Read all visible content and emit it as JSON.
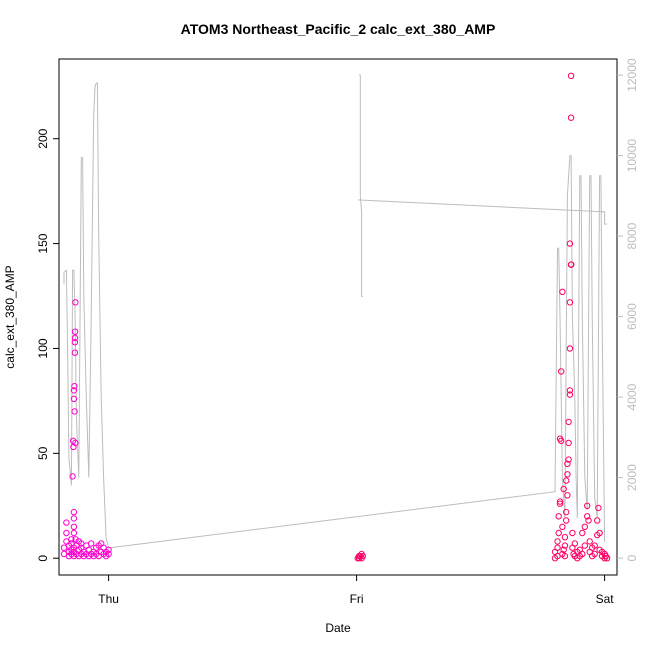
{
  "chart_data": {
    "type": "scatter",
    "title": "ATOM3 Northeast_Pacific_2 calc_ext_380_AMP",
    "xlabel": "Date",
    "ylabel": "calc_ext_380_AMP",
    "x_ticks": [
      "Thu",
      "Fri",
      "Sat"
    ],
    "xlim_days": [
      -0.2,
      2.05
    ],
    "ylim": [
      -8,
      238
    ],
    "y_ticks": [
      0,
      50,
      100,
      150,
      200
    ],
    "y2lim": [
      -420,
      12400
    ],
    "y2_ticks": [
      0,
      2000,
      4000,
      6000,
      8000,
      10000,
      12000
    ],
    "grid": false,
    "series": [
      {
        "color": "#ff00cc",
        "marker": "open-circle",
        "points": [
          [
            -0.18,
            2
          ],
          [
            -0.18,
            5
          ],
          [
            -0.17,
            8
          ],
          [
            -0.17,
            12
          ],
          [
            -0.17,
            17
          ],
          [
            -0.16,
            3
          ],
          [
            -0.16,
            6
          ],
          [
            -0.16,
            1
          ],
          [
            -0.15,
            4
          ],
          [
            -0.15,
            9
          ],
          [
            -0.15,
            2
          ],
          [
            -0.15,
            7
          ],
          [
            -0.14,
            1
          ],
          [
            -0.14,
            3
          ],
          [
            -0.14,
            5
          ],
          [
            -0.14,
            22
          ],
          [
            -0.14,
            19
          ],
          [
            -0.14,
            15
          ],
          [
            -0.14,
            12
          ],
          [
            -0.145,
            39
          ],
          [
            -0.143,
            56
          ],
          [
            -0.142,
            53
          ],
          [
            -0.14,
            76
          ],
          [
            -0.14,
            80
          ],
          [
            -0.138,
            82
          ],
          [
            -0.137,
            70
          ],
          [
            -0.136,
            98
          ],
          [
            -0.136,
            103
          ],
          [
            -0.135,
            105
          ],
          [
            -0.135,
            108
          ],
          [
            -0.134,
            122
          ],
          [
            -0.134,
            55
          ],
          [
            -0.133,
            9
          ],
          [
            -0.13,
            2
          ],
          [
            -0.13,
            6
          ],
          [
            -0.12,
            1
          ],
          [
            -0.12,
            4
          ],
          [
            -0.12,
            8
          ],
          [
            -0.11,
            2
          ],
          [
            -0.11,
            5
          ],
          [
            -0.11,
            7
          ],
          [
            -0.1,
            1
          ],
          [
            -0.1,
            3
          ],
          [
            -0.09,
            2
          ],
          [
            -0.09,
            6
          ],
          [
            -0.08,
            1
          ],
          [
            -0.08,
            4
          ],
          [
            -0.07,
            2
          ],
          [
            -0.07,
            7
          ],
          [
            -0.06,
            1
          ],
          [
            -0.06,
            3
          ],
          [
            -0.05,
            5
          ],
          [
            -0.05,
            2
          ],
          [
            -0.04,
            1
          ],
          [
            -0.04,
            6
          ],
          [
            -0.03,
            3
          ],
          [
            -0.03,
            7
          ],
          [
            -0.02,
            2
          ],
          [
            -0.02,
            5
          ],
          [
            -0.01,
            1
          ],
          [
            -0.01,
            3
          ],
          [
            0.0,
            2
          ],
          [
            0.0,
            4
          ]
        ]
      },
      {
        "color": "#ff0066",
        "marker": "open-circle",
        "points": [
          [
            1.01,
            0
          ],
          [
            1.01,
            1
          ],
          [
            1.02,
            0
          ],
          [
            1.02,
            2
          ],
          [
            1.015,
            1
          ],
          [
            1.005,
            0
          ],
          [
            1.025,
            1
          ],
          [
            1.8,
            0
          ],
          [
            1.8,
            3
          ],
          [
            1.81,
            1
          ],
          [
            1.81,
            5
          ],
          [
            1.81,
            8
          ],
          [
            1.815,
            12
          ],
          [
            1.815,
            20
          ],
          [
            1.82,
            26
          ],
          [
            1.82,
            27
          ],
          [
            1.82,
            57
          ],
          [
            1.825,
            56
          ],
          [
            1.825,
            89
          ],
          [
            1.83,
            127
          ],
          [
            1.83,
            2
          ],
          [
            1.83,
            15
          ],
          [
            1.835,
            4
          ],
          [
            1.84,
            1
          ],
          [
            1.84,
            6
          ],
          [
            1.84,
            10
          ],
          [
            1.845,
            18
          ],
          [
            1.845,
            22
          ],
          [
            1.85,
            30
          ],
          [
            1.85,
            40
          ],
          [
            1.85,
            45
          ],
          [
            1.855,
            55
          ],
          [
            1.855,
            65
          ],
          [
            1.86,
            80
          ],
          [
            1.86,
            78
          ],
          [
            1.86,
            100
          ],
          [
            1.86,
            122
          ],
          [
            1.865,
            140
          ],
          [
            1.865,
            140
          ],
          [
            1.865,
            140
          ],
          [
            1.86,
            150
          ],
          [
            1.865,
            210
          ],
          [
            1.865,
            230
          ],
          [
            1.87,
            12
          ],
          [
            1.87,
            5
          ],
          [
            1.875,
            2
          ],
          [
            1.88,
            1
          ],
          [
            1.88,
            7
          ],
          [
            1.89,
            0
          ],
          [
            1.89,
            3
          ],
          [
            1.9,
            1
          ],
          [
            1.9,
            4
          ],
          [
            1.91,
            2
          ],
          [
            1.91,
            12
          ],
          [
            1.92,
            6
          ],
          [
            1.92,
            15
          ],
          [
            1.93,
            20
          ],
          [
            1.93,
            25
          ],
          [
            1.935,
            18
          ],
          [
            1.94,
            8
          ],
          [
            1.94,
            3
          ],
          [
            1.95,
            1
          ],
          [
            1.95,
            5
          ],
          [
            1.96,
            2
          ],
          [
            1.96,
            6
          ],
          [
            1.97,
            11
          ],
          [
            1.97,
            18
          ],
          [
            1.975,
            24
          ],
          [
            1.98,
            12
          ],
          [
            1.98,
            4
          ],
          [
            1.99,
            1
          ],
          [
            1.99,
            3
          ],
          [
            2.0,
            0
          ],
          [
            2.0,
            2
          ],
          [
            2.005,
            1
          ],
          [
            2.01,
            0
          ],
          [
            1.835,
            33
          ],
          [
            1.845,
            37
          ],
          [
            1.855,
            47
          ]
        ]
      }
    ],
    "line_series": {
      "color": "#bdbdbd",
      "axis": "right",
      "points": [
        [
          -0.18,
          6800
        ],
        [
          -0.18,
          7100
        ],
        [
          -0.17,
          7150
        ],
        [
          -0.165,
          5000
        ],
        [
          -0.16,
          2500
        ],
        [
          -0.15,
          1800
        ],
        [
          -0.145,
          7150
        ],
        [
          -0.14,
          7150
        ],
        [
          -0.135,
          6000
        ],
        [
          -0.13,
          3500
        ],
        [
          -0.12,
          2000
        ],
        [
          -0.11,
          9950
        ],
        [
          -0.105,
          9950
        ],
        [
          -0.1,
          6500
        ],
        [
          -0.09,
          4000
        ],
        [
          -0.08,
          2000
        ],
        [
          -0.07,
          6000
        ],
        [
          -0.06,
          11000
        ],
        [
          -0.055,
          11700
        ],
        [
          -0.05,
          11800
        ],
        [
          -0.045,
          11800
        ],
        [
          -0.04,
          8000
        ],
        [
          -0.03,
          4000
        ],
        [
          -0.02,
          2000
        ],
        [
          -0.01,
          500
        ],
        [
          0.0,
          250
        ],
        [
          1.8,
          1650
        ],
        [
          1.81,
          7700
        ],
        [
          1.815,
          7700
        ],
        [
          1.82,
          6000
        ],
        [
          1.825,
          4000
        ],
        [
          1.83,
          2000
        ],
        [
          1.84,
          1000
        ],
        [
          1.85,
          9000
        ],
        [
          1.86,
          10000
        ],
        [
          1.865,
          10000
        ],
        [
          1.87,
          6000
        ],
        [
          1.88,
          4000
        ],
        [
          1.885,
          2000
        ],
        [
          1.89,
          1000
        ],
        [
          1.9,
          9500
        ],
        [
          1.905,
          9500
        ],
        [
          1.91,
          6000
        ],
        [
          1.92,
          2000
        ],
        [
          1.93,
          1200
        ],
        [
          1.94,
          9500
        ],
        [
          1.945,
          9500
        ],
        [
          1.95,
          6000
        ],
        [
          1.96,
          1500
        ],
        [
          1.97,
          1000
        ],
        [
          1.98,
          9500
        ],
        [
          1.985,
          9500
        ],
        [
          1.99,
          6000
        ],
        [
          2.0,
          400
        ]
      ],
      "segments": [
        [
          [
            1.01,
            12000
          ],
          [
            1.015,
            12000
          ],
          [
            1.015,
            9000
          ],
          [
            1.02,
            8600
          ],
          [
            1.02,
            8400
          ],
          [
            1.02,
            6500
          ],
          [
            1.025,
            6500
          ]
        ],
        [
          [
            1.005,
            8900
          ],
          [
            2.0,
            8600
          ],
          [
            2.0,
            8300
          ],
          [
            2.01,
            8300
          ]
        ]
      ]
    }
  }
}
